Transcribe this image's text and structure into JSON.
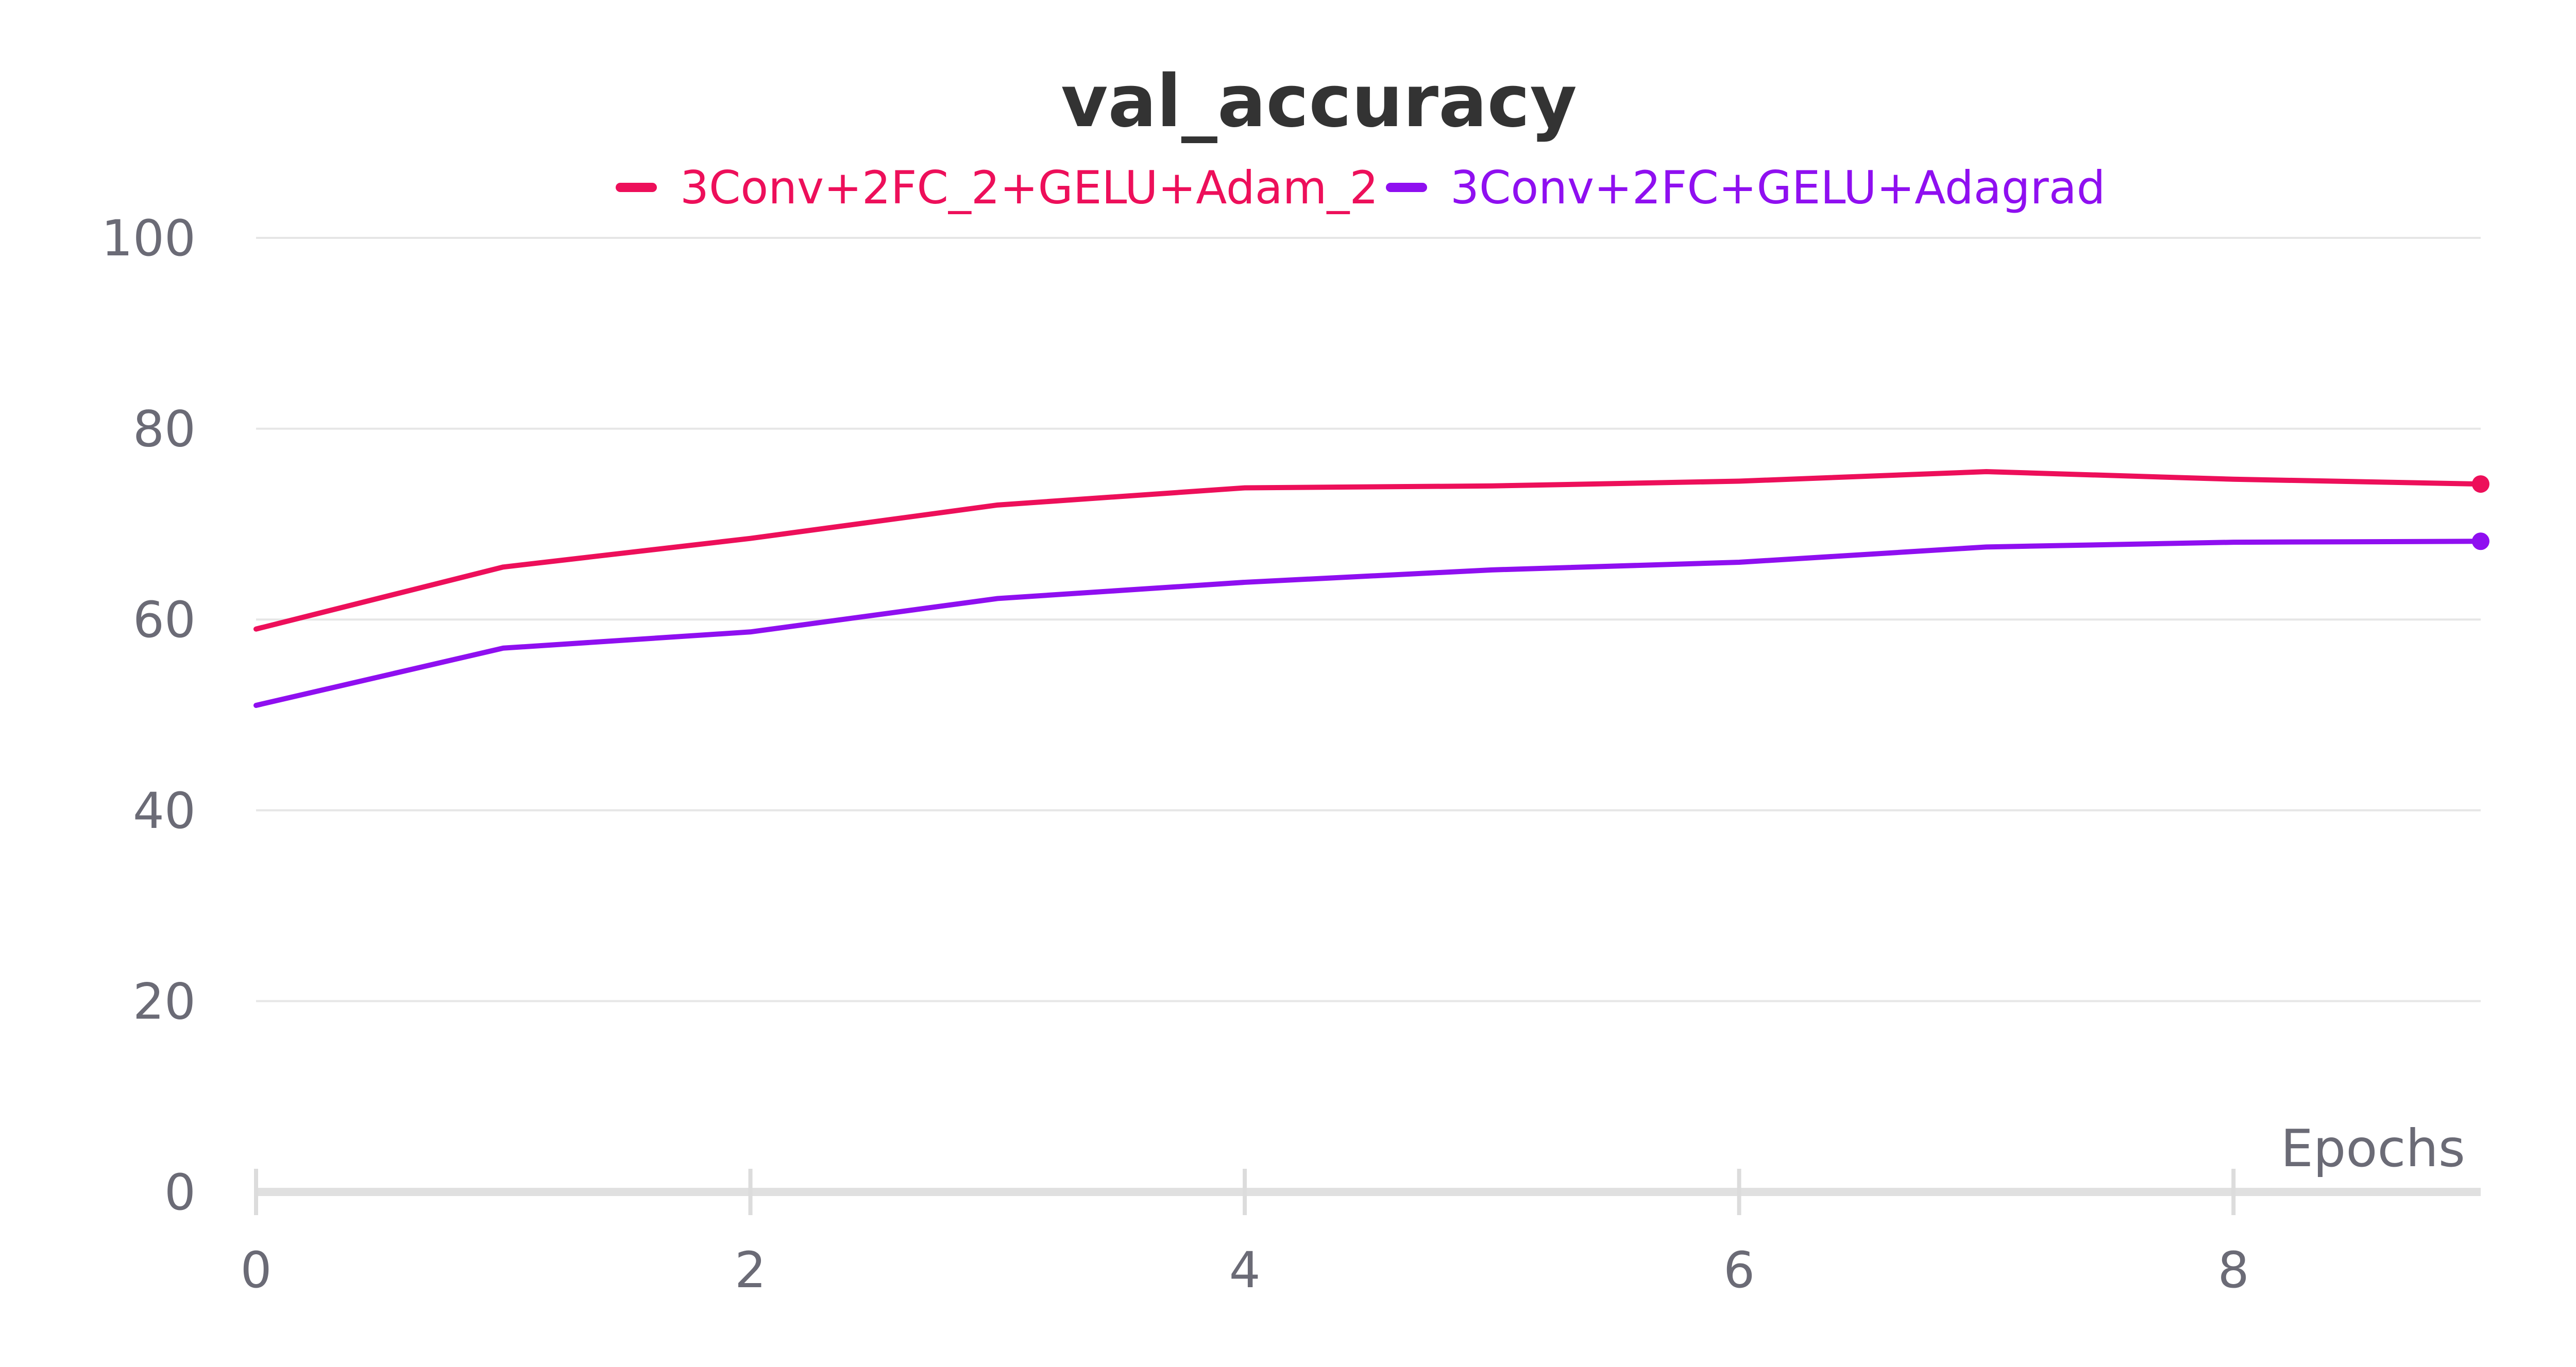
{
  "chart_data": {
    "type": "line",
    "title": "val_accuracy",
    "xlabel": "Epochs",
    "ylabel": "",
    "xlim": [
      0,
      9
    ],
    "ylim": [
      0,
      100
    ],
    "x_ticks": [
      0,
      2,
      4,
      6,
      8
    ],
    "y_ticks": [
      0,
      20,
      40,
      60,
      80,
      100
    ],
    "grid": true,
    "legend_position": "top-center",
    "x": [
      0,
      1,
      2,
      3,
      4,
      5,
      6,
      7,
      8,
      9
    ],
    "series": [
      {
        "name": "3Conv+2FC_2+GELU+Adam_2",
        "color": "#ed0f5a",
        "values": [
          59.0,
          65.5,
          68.5,
          72.0,
          73.8,
          74.0,
          74.5,
          75.5,
          74.7,
          74.2
        ]
      },
      {
        "name": "3Conv+2FC+GELU+Adagrad",
        "color": "#8f0ff0",
        "values": [
          51.0,
          57.0,
          58.7,
          62.2,
          63.9,
          65.2,
          66.0,
          67.6,
          68.1,
          68.2
        ]
      }
    ]
  }
}
